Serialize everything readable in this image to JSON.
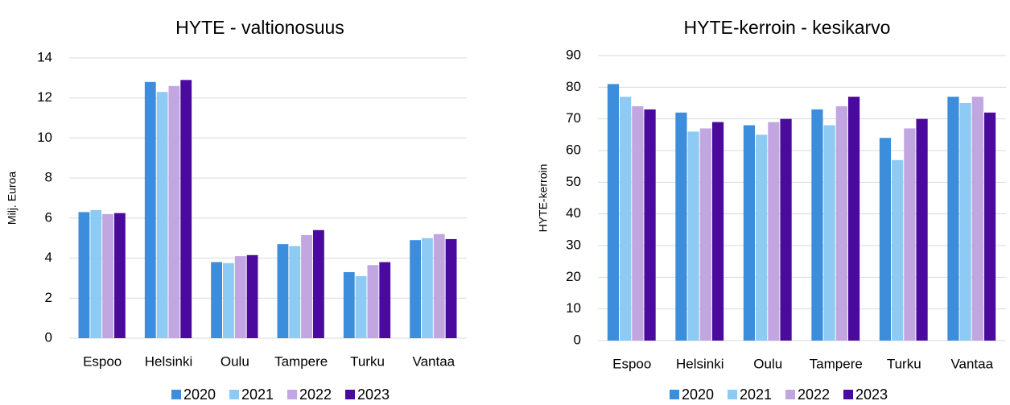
{
  "chart_data": [
    {
      "type": "bar",
      "title": "HYTE - valtionosuus",
      "y_label": "Milj. Euroa",
      "categories": [
        "Espoo",
        "Helsinki",
        "Oulu",
        "Tampere",
        "Turku",
        "Vantaa"
      ],
      "series": [
        {
          "name": "2020",
          "color": "#3c8ddc",
          "values": [
            6.3,
            12.8,
            3.8,
            4.7,
            3.3,
            4.9
          ]
        },
        {
          "name": "2021",
          "color": "#8dcbf4",
          "values": [
            6.4,
            12.3,
            3.75,
            4.6,
            3.1,
            5.0
          ]
        },
        {
          "name": "2022",
          "color": "#c2a6e2",
          "values": [
            6.2,
            12.6,
            4.1,
            5.15,
            3.65,
            5.2
          ]
        },
        {
          "name": "2023",
          "color": "#4a0a9e",
          "values": [
            6.25,
            12.9,
            4.15,
            5.4,
            3.8,
            4.95
          ]
        }
      ],
      "ylim": [
        0,
        14
      ],
      "yticks": [
        0,
        2,
        4,
        6,
        8,
        10,
        12,
        14
      ],
      "grid": true,
      "legend": "bottom"
    },
    {
      "type": "bar",
      "title": "HYTE-kerroin - kesikarvo",
      "y_label": "HYTE-kerroin",
      "categories": [
        "Espoo",
        "Helsinki",
        "Oulu",
        "Tampere",
        "Turku",
        "Vantaa"
      ],
      "series": [
        {
          "name": "2020",
          "color": "#3c8ddc",
          "values": [
            81,
            72,
            68,
            73,
            64,
            77
          ]
        },
        {
          "name": "2021",
          "color": "#8dcbf4",
          "values": [
            77,
            66,
            65,
            68,
            57,
            75
          ]
        },
        {
          "name": "2022",
          "color": "#c2a6e2",
          "values": [
            74,
            67,
            69,
            74,
            67,
            77
          ]
        },
        {
          "name": "2023",
          "color": "#4a0a9e",
          "values": [
            73,
            69,
            70,
            77,
            70,
            72
          ]
        }
      ],
      "ylim": [
        0,
        90
      ],
      "yticks": [
        0,
        10,
        20,
        30,
        40,
        50,
        60,
        70,
        80,
        90
      ],
      "grid": true,
      "legend": "bottom"
    }
  ]
}
